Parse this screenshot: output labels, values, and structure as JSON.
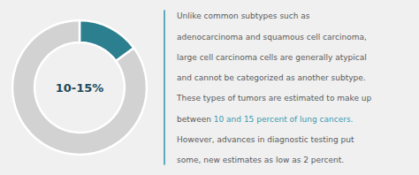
{
  "chart_data": {
    "type": "pie",
    "values": [
      15,
      85
    ],
    "colors": [
      "#2b7f8e",
      "#d2d2d2"
    ],
    "annotations": {
      "center": "10-15%",
      "lines": [
        [
          {
            "text": "Unlike common subtypes such as"
          }
        ],
        [
          {
            "text": "adenocarcinoma and squamous cell carcinoma,"
          }
        ],
        [
          {
            "text": "large cell carcinoma cells are generally atypical"
          }
        ],
        [
          {
            "text": "and cannot be categorized as another subtype."
          }
        ],
        [
          {
            "text": "These types of tumors are estimated to make up"
          }
        ],
        [
          {
            "text": "between "
          },
          {
            "text": "10 and 15 percent of lung cancers.",
            "color": "#3a9ab0"
          }
        ],
        [
          {
            "text": "However, advances in diagnostic testing put"
          }
        ],
        [
          {
            "text": "some, new estimates as low as 2 percent."
          }
        ]
      ]
    }
  }
}
